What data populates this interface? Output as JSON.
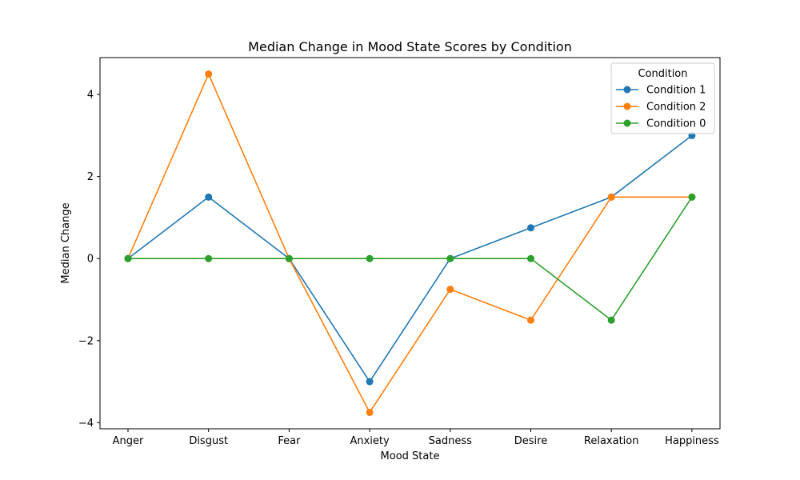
{
  "chart_data": {
    "type": "line",
    "title": "Median Change in Mood State Scores by Condition",
    "xlabel": "Mood State",
    "ylabel": "Median Change",
    "categories": [
      "Anger",
      "Disgust",
      "Fear",
      "Anxiety",
      "Sadness",
      "Desire",
      "Relaxation",
      "Happiness"
    ],
    "series": [
      {
        "name": "Condition 1",
        "color": "#1f77b4",
        "values": [
          0,
          1.5,
          0,
          -3,
          0,
          0.75,
          1.5,
          3
        ]
      },
      {
        "name": "Condition 2",
        "color": "#ff7f0e",
        "values": [
          0,
          4.5,
          0,
          -3.75,
          -0.75,
          -1.5,
          1.5,
          1.5
        ]
      },
      {
        "name": "Condition 0",
        "color": "#2ca02c",
        "values": [
          0,
          0,
          0,
          0,
          0,
          0,
          -1.5,
          1.5
        ]
      }
    ],
    "ylim": [
      -4.15,
      4.9
    ],
    "yticks": [
      -4,
      -2,
      0,
      2,
      4
    ],
    "ytick_labels": [
      "−4",
      "−2",
      "0",
      "2",
      "4"
    ],
    "grid": false,
    "legend": {
      "title": "Condition",
      "placement": "top-right"
    }
  }
}
